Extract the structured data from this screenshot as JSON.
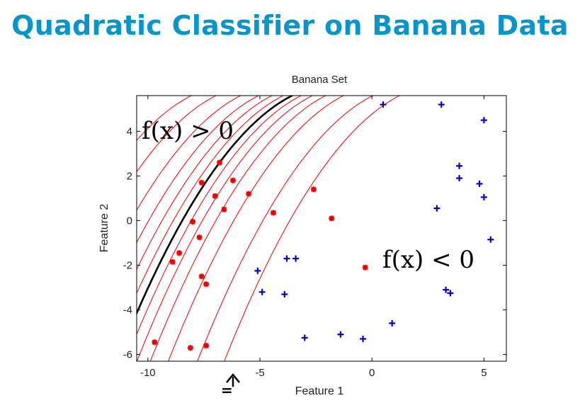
{
  "slide": {
    "title": "Quadratic Classifier on Banana Data"
  },
  "annotations": {
    "pos_region": "f(x) > 0",
    "neg_region": "f(x) < 0",
    "arrow_mark": "="
  },
  "colors": {
    "title": "#0a95c9",
    "class_red": "#ee0000",
    "class_blue": "#0000cc",
    "contour": "#ee1111",
    "boundary": "#000000"
  },
  "chart_data": {
    "type": "scatter",
    "title": "Banana Set",
    "xlabel": "Feature 1",
    "ylabel": "Feature 2",
    "xlim": [
      -10.5,
      6.0
    ],
    "ylim": [
      -6.3,
      5.6
    ],
    "xticks": [
      -10,
      -5,
      0,
      5
    ],
    "yticks": [
      -6,
      -4,
      -2,
      0,
      2,
      4
    ],
    "grid": false,
    "series": [
      {
        "marker": "asterisk",
        "color": "#ee0000",
        "points": [
          [
            -6.8,
            2.6
          ],
          [
            -7.6,
            1.7
          ],
          [
            -6.2,
            1.8
          ],
          [
            -5.5,
            1.2
          ],
          [
            -7.0,
            1.1
          ],
          [
            -6.6,
            0.5
          ],
          [
            -4.4,
            0.35
          ],
          [
            -2.6,
            1.4
          ],
          [
            -1.8,
            0.1
          ],
          [
            -8.0,
            -0.05
          ],
          [
            -7.7,
            -0.75
          ],
          [
            -8.6,
            -1.45
          ],
          [
            -8.9,
            -1.85
          ],
          [
            -7.6,
            -2.5
          ],
          [
            -7.4,
            -2.85
          ],
          [
            -0.3,
            -2.1
          ],
          [
            -9.7,
            -5.45
          ],
          [
            -8.1,
            -5.7
          ],
          [
            -7.4,
            -5.6
          ]
        ]
      },
      {
        "marker": "plus",
        "color": "#0000cc",
        "points": [
          [
            0.5,
            5.2
          ],
          [
            3.1,
            5.2
          ],
          [
            5.0,
            4.5
          ],
          [
            3.9,
            2.45
          ],
          [
            3.9,
            1.9
          ],
          [
            4.8,
            1.65
          ],
          [
            5.0,
            1.05
          ],
          [
            2.9,
            0.55
          ],
          [
            5.3,
            -0.85
          ],
          [
            -3.8,
            -1.7
          ],
          [
            -3.4,
            -1.7
          ],
          [
            -5.1,
            -2.25
          ],
          [
            -4.9,
            -3.2
          ],
          [
            -3.9,
            -3.3
          ],
          [
            3.3,
            -3.1
          ],
          [
            3.5,
            -3.25
          ],
          [
            0.9,
            -4.6
          ],
          [
            -1.4,
            -5.1
          ],
          [
            -0.4,
            -5.3
          ],
          [
            -3.0,
            -5.25
          ]
        ]
      }
    ],
    "decision_boundary": {
      "formula": "y = 6.1 - ((-1.6 - x)/2.78)^2",
      "offsets": [
        0
      ]
    },
    "contours": {
      "offsets": [
        -4.5,
        -3.4,
        -2.3,
        -1.5,
        -0.9,
        -0.4,
        0.4,
        0.9,
        1.5,
        2.3,
        3.6,
        4.8
      ]
    }
  }
}
